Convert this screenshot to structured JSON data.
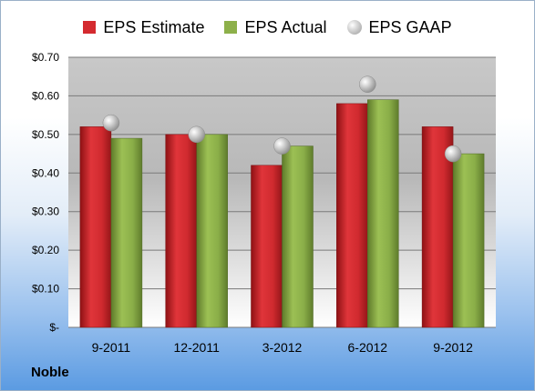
{
  "company": "Noble",
  "legend": {
    "estimate": "EPS Estimate",
    "actual": "EPS Actual",
    "gaap": "EPS GAAP"
  },
  "colors": {
    "estimate": "#d42a2f",
    "actual": "#8db04a",
    "gaap": "#b0b0b0"
  },
  "chart_data": {
    "type": "bar",
    "categories": [
      "9-2011",
      "12-2011",
      "3-2012",
      "6-2012",
      "9-2012"
    ],
    "series": [
      {
        "name": "EPS Estimate",
        "values": [
          0.52,
          0.5,
          0.42,
          0.58,
          0.52
        ]
      },
      {
        "name": "EPS Actual",
        "values": [
          0.49,
          0.5,
          0.47,
          0.59,
          0.45
        ]
      },
      {
        "name": "EPS GAAP",
        "values": [
          0.53,
          0.5,
          0.47,
          0.63,
          0.45
        ],
        "marker": "bubble"
      }
    ],
    "ylim": [
      0,
      0.7
    ],
    "yticks": [
      0,
      0.1,
      0.2,
      0.3,
      0.4,
      0.5,
      0.6,
      0.7
    ],
    "ytick_labels": [
      "$-",
      "$0.10",
      "$0.20",
      "$0.30",
      "$0.40",
      "$0.50",
      "$0.60",
      "$0.70"
    ],
    "grid": true,
    "legend_position": "top"
  }
}
